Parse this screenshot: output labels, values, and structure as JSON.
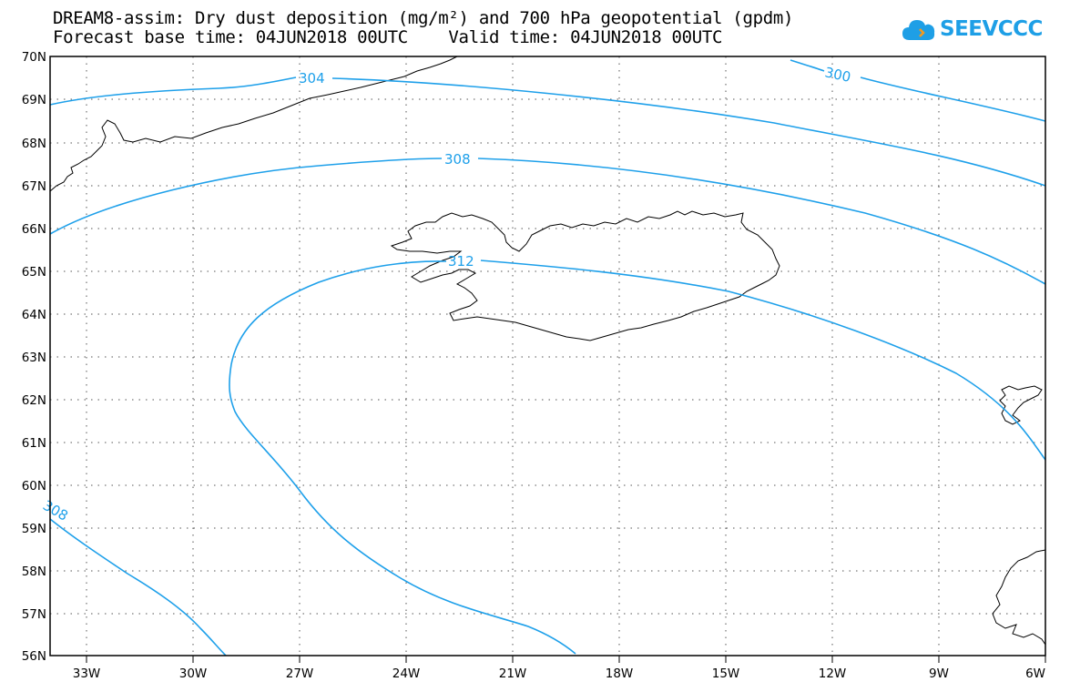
{
  "header": {
    "title_line1": "DREAM8-assim: Dry dust deposition (mg/m²) and 700 hPa geopotential (gpdm)",
    "title_line2": "Forecast base time: 04JUN2018 00UTC    Valid time: 04JUN2018 00UTC"
  },
  "logo": {
    "text": "SEEVCCC",
    "icon": "cloud-icon",
    "color": "#1e9fe6"
  },
  "map": {
    "lon_range": [
      -34.2,
      -6
    ],
    "lat_range": [
      56,
      70
    ],
    "lat_ticks": [
      "70N",
      "69N",
      "68N",
      "67N",
      "66N",
      "65N",
      "64N",
      "63N",
      "62N",
      "61N",
      "60N",
      "59N",
      "58N",
      "57N",
      "56N"
    ],
    "lon_ticks": [
      "33W",
      "30W",
      "27W",
      "24W",
      "21W",
      "18W",
      "15W",
      "12W",
      "9W",
      "6W"
    ],
    "contour_color": "#1ea0ea",
    "contour_labels": [
      "304",
      "300",
      "308",
      "312",
      "308"
    ]
  }
}
